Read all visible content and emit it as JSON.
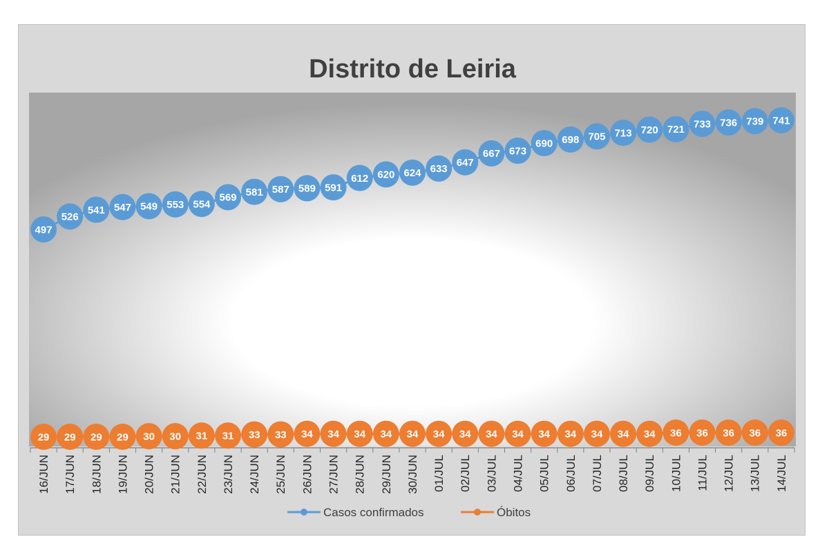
{
  "chart_data": {
    "type": "line",
    "title": "Distrito de Leiria",
    "categories": [
      "16/JUN",
      "17/JUN",
      "18/JUN",
      "19/JUN",
      "20/JUN",
      "21/JUN",
      "22/JUN",
      "23/JUN",
      "24/JUN",
      "25/JUN",
      "26/JUN",
      "27/JUN",
      "28/JUN",
      "29/JUN",
      "30/JUN",
      "01/JUL",
      "02/JUL",
      "03/JUL",
      "04/JUL",
      "05/JUL",
      "06/JUL",
      "07/JUL",
      "08/JUL",
      "09/JUL",
      "10/JUL",
      "11/JUL",
      "12/JUL",
      "13/JUL",
      "14/JUL"
    ],
    "series": [
      {
        "name": "Casos confirmados",
        "color": "#5b9bd5",
        "values": [
          497,
          526,
          541,
          547,
          549,
          553,
          554,
          569,
          581,
          587,
          589,
          591,
          612,
          620,
          624,
          633,
          647,
          667,
          673,
          690,
          698,
          705,
          713,
          720,
          721,
          733,
          736,
          739,
          741
        ]
      },
      {
        "name": "Óbitos",
        "color": "#ed7d31",
        "values": [
          29,
          29,
          29,
          29,
          30,
          30,
          31,
          31,
          33,
          33,
          34,
          34,
          34,
          34,
          34,
          34,
          34,
          34,
          34,
          34,
          34,
          34,
          34,
          34,
          36,
          36,
          36,
          36,
          36
        ]
      }
    ],
    "legend_position": "bottom",
    "grid": false,
    "data_labels": true
  }
}
